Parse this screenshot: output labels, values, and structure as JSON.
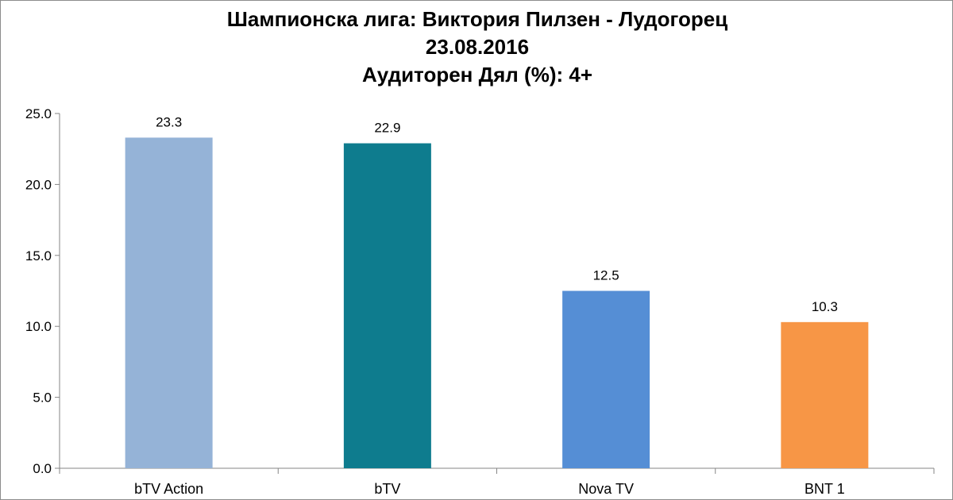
{
  "chart_data": {
    "type": "bar",
    "title_lines": [
      "Шампионска лига: Виктория Пилзен - Лудогорец",
      "23.08.2016",
      "Аудиторен Дял (%):  4+"
    ],
    "categories": [
      "bTV Action",
      "bTV",
      "Nova TV",
      "BNT 1"
    ],
    "values": [
      23.3,
      22.9,
      12.5,
      10.3
    ],
    "value_labels": [
      "23.3",
      "22.9",
      "12.5",
      "10.3"
    ],
    "colors": [
      "#95b3d7",
      "#0e7c8e",
      "#558ed5",
      "#f79646"
    ],
    "y_ticks": [
      "0.0",
      "5.0",
      "10.0",
      "15.0",
      "20.0",
      "25.0"
    ],
    "ylim": [
      0,
      25
    ],
    "grid": false,
    "legend": "none"
  }
}
